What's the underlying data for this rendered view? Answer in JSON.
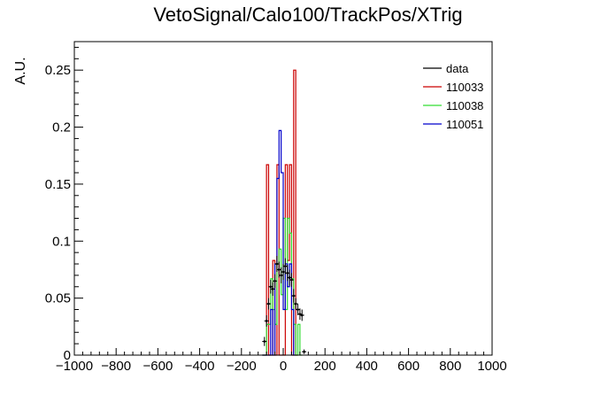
{
  "chart_data": {
    "type": "line",
    "title": "VetoSignal/Calo100/TrackPos/XTrig",
    "xlabel": "",
    "ylabel": "A.U.",
    "xlim": [
      -1000,
      1000
    ],
    "ylim": [
      0,
      0.275
    ],
    "x_ticks": [
      "−1000",
      "−800",
      "−600",
      "−400",
      "−200",
      "0",
      "200",
      "400",
      "600",
      "800",
      "1000"
    ],
    "x_tick_values": [
      -1000,
      -800,
      -600,
      -400,
      -200,
      0,
      200,
      400,
      600,
      800,
      1000
    ],
    "y_ticks": [
      "0",
      "0.05",
      "0.1",
      "0.15",
      "0.2",
      "0.25"
    ],
    "y_tick_values": [
      0,
      0.05,
      0.1,
      0.15,
      0.2,
      0.25
    ],
    "grid": false,
    "legend_position": "top-right",
    "series": [
      {
        "name": "data",
        "color": "#000000",
        "style": "points",
        "points": [
          {
            "x": -90,
            "y": 0.012,
            "err": 0.004
          },
          {
            "x": -80,
            "y": 0.03,
            "err": 0.005
          },
          {
            "x": -70,
            "y": 0.045,
            "err": 0.005
          },
          {
            "x": -60,
            "y": 0.06,
            "err": 0.006
          },
          {
            "x": -50,
            "y": 0.058,
            "err": 0.006
          },
          {
            "x": -40,
            "y": 0.065,
            "err": 0.006
          },
          {
            "x": -30,
            "y": 0.08,
            "err": 0.007
          },
          {
            "x": -20,
            "y": 0.075,
            "err": 0.007
          },
          {
            "x": -10,
            "y": 0.07,
            "err": 0.007
          },
          {
            "x": 0,
            "y": 0.073,
            "err": 0.007
          },
          {
            "x": 10,
            "y": 0.078,
            "err": 0.007
          },
          {
            "x": 20,
            "y": 0.072,
            "err": 0.007
          },
          {
            "x": 30,
            "y": 0.068,
            "err": 0.007
          },
          {
            "x": 40,
            "y": 0.066,
            "err": 0.006
          },
          {
            "x": 50,
            "y": 0.052,
            "err": 0.006
          },
          {
            "x": 60,
            "y": 0.045,
            "err": 0.005
          },
          {
            "x": 70,
            "y": 0.04,
            "err": 0.005
          },
          {
            "x": 80,
            "y": 0.036,
            "err": 0.005
          },
          {
            "x": 90,
            "y": 0.035,
            "err": 0.005
          },
          {
            "x": 100,
            "y": 0.003,
            "err": 0.002
          }
        ]
      },
      {
        "name": "110033",
        "color": "#cc0000",
        "style": "step",
        "bin_edges": [
          -100,
          -80,
          -70,
          -60,
          -50,
          -40,
          -30,
          -20,
          -10,
          0,
          10,
          20,
          30,
          40,
          50,
          60,
          70
        ],
        "values": [
          0.0,
          0.167,
          0.0,
          0.0,
          0.083,
          0.0,
          0.167,
          0.0,
          0.0,
          0.0,
          0.167,
          0.083,
          0.167,
          0.0,
          0.25,
          0.0
        ]
      },
      {
        "name": "110038",
        "color": "#33dd33",
        "style": "step",
        "bin_edges": [
          -100,
          -80,
          -70,
          -60,
          -50,
          -40,
          -30,
          -20,
          -10,
          0,
          10,
          20,
          30,
          40,
          50,
          60,
          70,
          80,
          90
        ],
        "values": [
          0.0,
          0.027,
          0.027,
          0.067,
          0.04,
          0.027,
          0.08,
          0.093,
          0.053,
          0.12,
          0.04,
          0.12,
          0.107,
          0.067,
          0.027,
          0.0,
          0.027,
          0.0
        ]
      },
      {
        "name": "110051",
        "color": "#0000cc",
        "style": "step",
        "bin_edges": [
          -100,
          -80,
          -70,
          -60,
          -50,
          -40,
          -30,
          -20,
          -10,
          0,
          10,
          20,
          30,
          40,
          50,
          60
        ],
        "values": [
          0.0,
          0.0,
          0.0,
          0.04,
          0.0,
          0.08,
          0.155,
          0.197,
          0.16,
          0.04,
          0.08,
          0.06,
          0.08,
          0.04,
          0.0
        ]
      }
    ]
  }
}
